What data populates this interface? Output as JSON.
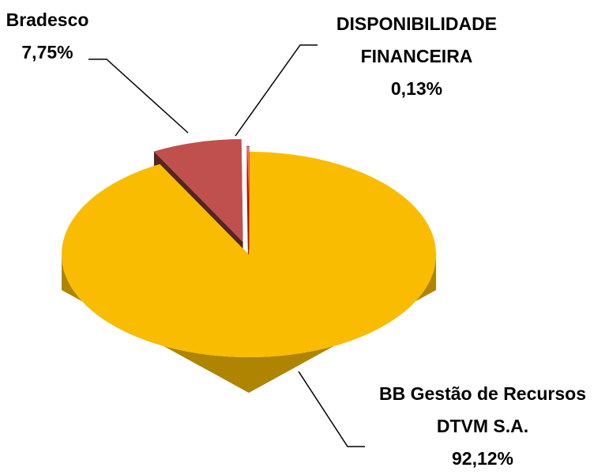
{
  "chart_data": {
    "type": "pie",
    "categories": [
      "BB Gestão de Recursos DTVM S.A.",
      "Bradesco",
      "DISPONIBILIDADE FINANCEIRA"
    ],
    "values": [
      92.12,
      7.75,
      0.13
    ],
    "value_labels": [
      "92,12%",
      "7,75%",
      "0,13%"
    ],
    "colors": [
      "#f9bc00",
      "#c0504d",
      "#ffffff"
    ]
  }
}
